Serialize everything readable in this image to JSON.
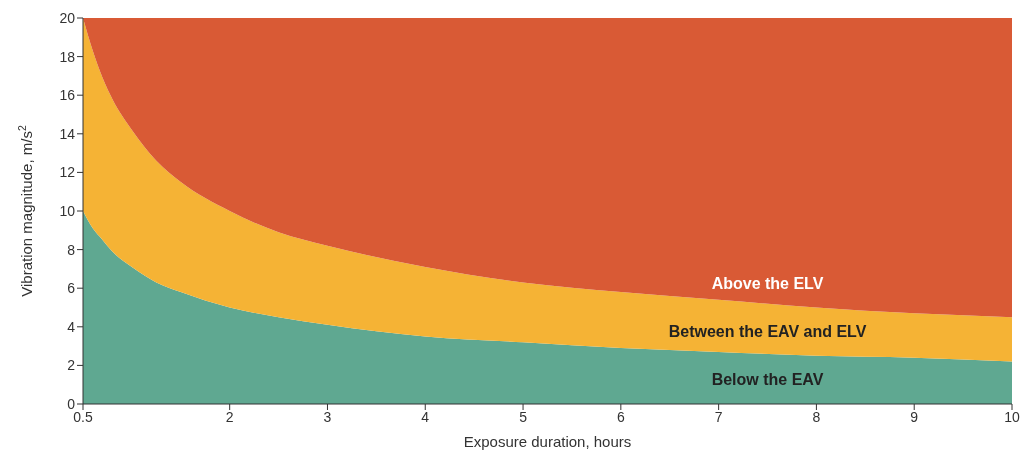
{
  "chart_data": {
    "type": "area",
    "stacked": true,
    "xlabel": "Exposure duration, hours",
    "ylabel": "Vibration magnitude, m/s$^{2}$",
    "x": [
      0.5,
      0.6,
      0.7,
      0.8,
      1,
      1.25,
      1.5,
      2,
      2.5,
      3,
      4,
      5,
      6,
      7,
      8,
      9,
      10
    ],
    "series": [
      {
        "name": "Below the EAV",
        "color": "#5fa891",
        "values": [
          10,
          9.1,
          8.5,
          7.9,
          7.1,
          6.3,
          5.8,
          5,
          4.5,
          4.1,
          3.5,
          3.2,
          2.9,
          2.7,
          2.5,
          2.4,
          2.2
        ]
      },
      {
        "name": "Between the EAV and ELV",
        "color": "#f5b335",
        "values": [
          10,
          9.2,
          8.4,
          7.9,
          7.1,
          6.3,
          5.7,
          5,
          4.4,
          4.1,
          3.6,
          3.1,
          2.9,
          2.7,
          2.5,
          2.3,
          2.3
        ]
      },
      {
        "name": "Above the ELV",
        "color": "#d95a35",
        "values": [
          0,
          1.7,
          3.1,
          4.2,
          5.8,
          7.4,
          8.5,
          10,
          11.1,
          11.8,
          12.9,
          13.7,
          14.2,
          14.6,
          15,
          15.3,
          15.5
        ]
      }
    ],
    "xlim": [
      0.5,
      10
    ],
    "xticks": [
      0.5,
      2,
      3,
      4,
      5,
      6,
      7,
      8,
      9,
      10
    ],
    "ylim": [
      0,
      20
    ],
    "yticks": [
      0,
      2,
      4,
      6,
      8,
      10,
      12,
      14,
      16,
      18,
      20
    ],
    "legend": false,
    "grid": false
  }
}
